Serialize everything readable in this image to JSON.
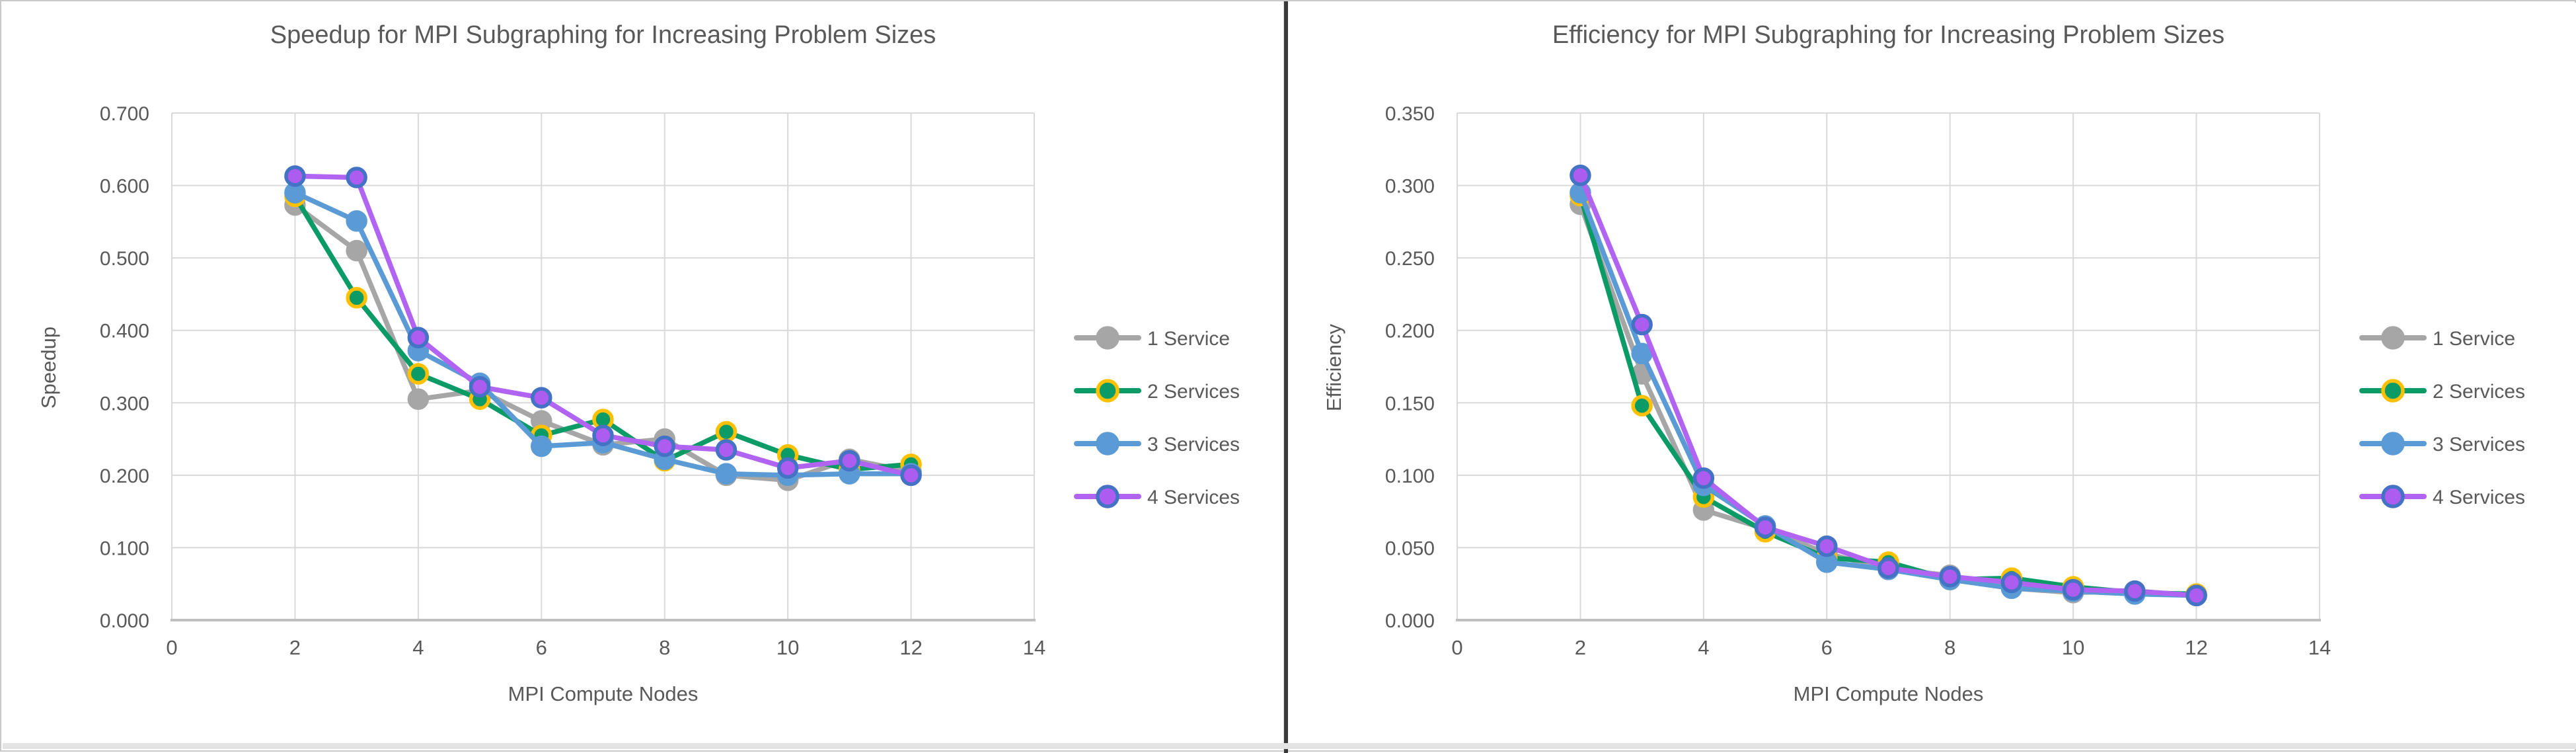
{
  "page": {
    "background": "#ffffff",
    "text_color": "#595959",
    "grid_color": "#d9d9d9",
    "axis_line_color": "#bfbfbf",
    "divider_color": "#3a3a3a"
  },
  "chart_data": [
    {
      "type": "line",
      "title": "Speedup for MPI Subgraphing for Increasing Problem Sizes",
      "xlabel": "MPI Compute Nodes",
      "ylabel": "Speedup",
      "xlim": [
        0,
        14
      ],
      "xtick_step": 2,
      "ylim": [
        0.0,
        0.7
      ],
      "ytick_step": 0.1,
      "ytick_decimals": 3,
      "grid": true,
      "legend_position": "right",
      "x": [
        2,
        3,
        4,
        5,
        6,
        7,
        8,
        9,
        10,
        11,
        12
      ],
      "series": [
        {
          "name": "1 Service",
          "color": "#a6a6a6",
          "marker_fill": "#a6a6a6",
          "marker_ring": "#a6a6a6",
          "values": [
            0.573,
            0.51,
            0.305,
            0.317,
            0.275,
            0.242,
            0.25,
            0.2,
            0.193,
            0.222,
            0.205
          ]
        },
        {
          "name": "2 Services",
          "color": "#0b9b67",
          "marker_fill": "#0b9b67",
          "marker_ring": "#ffc000",
          "values": [
            0.585,
            0.445,
            0.34,
            0.305,
            0.255,
            0.277,
            0.22,
            0.26,
            0.228,
            0.208,
            0.215
          ]
        },
        {
          "name": "3 Services",
          "color": "#5b9bd5",
          "marker_fill": "#5b9bd5",
          "marker_ring": "#5b9bd5",
          "values": [
            0.59,
            0.551,
            0.372,
            0.327,
            0.24,
            0.245,
            0.222,
            0.202,
            0.2,
            0.202,
            0.202
          ]
        },
        {
          "name": "4 Services",
          "color": "#b163f2",
          "marker_fill": "#ad5cf0",
          "marker_ring": "#4472c4",
          "values": [
            0.613,
            0.611,
            0.39,
            0.322,
            0.307,
            0.255,
            0.24,
            0.235,
            0.21,
            0.22,
            0.2
          ]
        }
      ]
    },
    {
      "type": "line",
      "title": "Efficiency for MPI Subgraphing for Increasing Problem Sizes",
      "xlabel": "MPI Compute Nodes",
      "ylabel": "Efficiency",
      "xlim": [
        0,
        14
      ],
      "xtick_step": 2,
      "ylim": [
        0.0,
        0.35
      ],
      "ytick_step": 0.05,
      "ytick_decimals": 3,
      "grid": true,
      "legend_position": "right",
      "x": [
        2,
        3,
        4,
        5,
        6,
        7,
        8,
        9,
        10,
        11,
        12
      ],
      "series": [
        {
          "name": "1 Service",
          "color": "#a6a6a6",
          "marker_fill": "#a6a6a6",
          "marker_ring": "#a6a6a6",
          "values": [
            0.287,
            0.17,
            0.076,
            0.063,
            0.046,
            0.035,
            0.031,
            0.022,
            0.019,
            0.02,
            0.017
          ]
        },
        {
          "name": "2 Services",
          "color": "#0b9b67",
          "marker_fill": "#0b9b67",
          "marker_ring": "#ffc000",
          "values": [
            0.293,
            0.148,
            0.085,
            0.061,
            0.043,
            0.04,
            0.028,
            0.029,
            0.023,
            0.019,
            0.018
          ]
        },
        {
          "name": "3 Services",
          "color": "#5b9bd5",
          "marker_fill": "#5b9bd5",
          "marker_ring": "#5b9bd5",
          "values": [
            0.295,
            0.184,
            0.093,
            0.065,
            0.04,
            0.035,
            0.028,
            0.022,
            0.02,
            0.018,
            0.017
          ]
        },
        {
          "name": "4 Services",
          "color": "#b163f2",
          "marker_fill": "#ad5cf0",
          "marker_ring": "#4472c4",
          "values": [
            0.307,
            0.204,
            0.098,
            0.064,
            0.051,
            0.036,
            0.03,
            0.026,
            0.021,
            0.02,
            0.017
          ]
        }
      ]
    }
  ]
}
